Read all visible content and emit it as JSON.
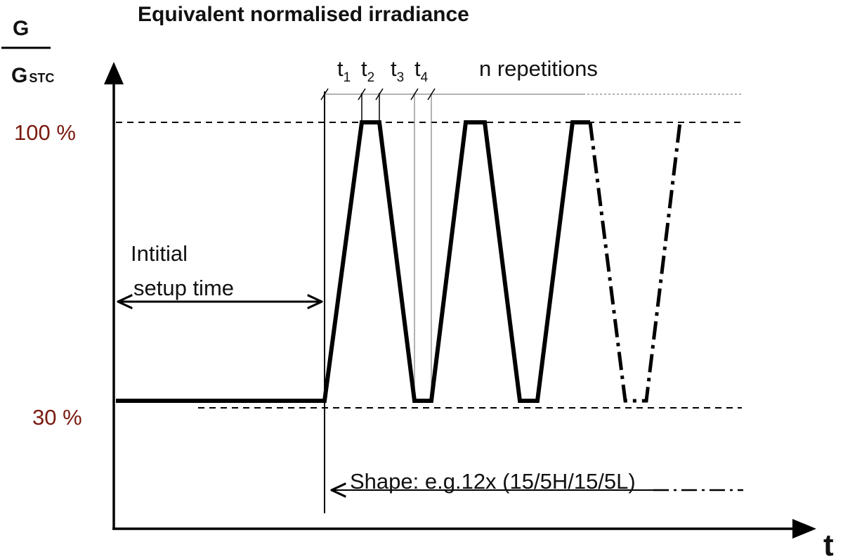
{
  "title": "Equivalent normalised irradiance",
  "y_axis": {
    "numerator": "G",
    "denominator": "G",
    "denominator_sub": "STC"
  },
  "x_axis": {
    "label": "t"
  },
  "levels": {
    "high": "100 %",
    "low": "30 %"
  },
  "time_labels": [
    {
      "base": "t",
      "sub": "1"
    },
    {
      "base": "t",
      "sub": "2"
    },
    {
      "base": "t",
      "sub": "3"
    },
    {
      "base": "t",
      "sub": "4"
    }
  ],
  "repetitions_label": "n repetitions",
  "setup": {
    "line1": "Intitial",
    "line2": "setup time"
  },
  "shape_label": "Shape: e.g.12x (15/5H/15/5L)"
}
